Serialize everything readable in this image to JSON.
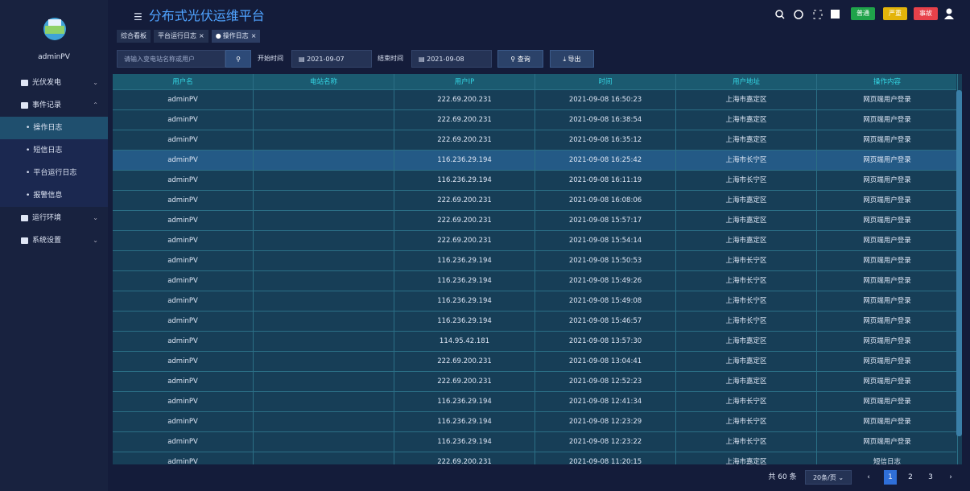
{
  "sidebar": {
    "user": "adminPV",
    "menu": [
      {
        "label": "光伏发电"
      },
      {
        "label": "事件记录",
        "children": [
          "操作日志",
          "短信日志",
          "平台运行日志",
          "报警信息"
        ]
      },
      {
        "label": "运行环境"
      },
      {
        "label": "系统设置"
      }
    ]
  },
  "header": {
    "title": "分布式光伏运维平台",
    "tabs": [
      "综合看板",
      "平台运行日志",
      "操作日志"
    ],
    "levels": [
      "普通",
      "严重",
      "事故"
    ]
  },
  "toolbar": {
    "placeholder": "请输入变电站名称或用户",
    "start_label": "开始时间",
    "start_date": "2021-09-07",
    "end_label": "结束时间",
    "end_date": "2021-09-08",
    "query": "查询",
    "export": "导出"
  },
  "table": {
    "columns": [
      "用户名",
      "电站名称",
      "用户IP",
      "时间",
      "用户地址",
      "操作内容"
    ],
    "rows": [
      {
        "user": "adminPV",
        "ip": "222.69.200.231",
        "time": "2021-09-08 16:50:23",
        "address": "上海市嘉定区",
        "action": "网页端用户登录"
      },
      {
        "user": "adminPV",
        "ip": "222.69.200.231",
        "time": "2021-09-08 16:38:54",
        "address": "上海市嘉定区",
        "action": "网页端用户登录"
      },
      {
        "user": "adminPV",
        "ip": "222.69.200.231",
        "time": "2021-09-08 16:35:12",
        "address": "上海市嘉定区",
        "action": "网页端用户登录"
      },
      {
        "user": "adminPV",
        "ip": "116.236.29.194",
        "time": "2021-09-08 16:25:42",
        "address": "上海市长宁区",
        "action": "网页端用户登录"
      },
      {
        "user": "adminPV",
        "ip": "116.236.29.194",
        "time": "2021-09-08 16:11:19",
        "address": "上海市长宁区",
        "action": "网页端用户登录"
      },
      {
        "user": "adminPV",
        "ip": "222.69.200.231",
        "time": "2021-09-08 16:08:06",
        "address": "上海市嘉定区",
        "action": "网页端用户登录"
      },
      {
        "user": "adminPV",
        "ip": "222.69.200.231",
        "time": "2021-09-08 15:57:17",
        "address": "上海市嘉定区",
        "action": "网页端用户登录"
      },
      {
        "user": "adminPV",
        "ip": "222.69.200.231",
        "time": "2021-09-08 15:54:14",
        "address": "上海市嘉定区",
        "action": "网页端用户登录"
      },
      {
        "user": "adminPV",
        "ip": "116.236.29.194",
        "time": "2021-09-08 15:50:53",
        "address": "上海市长宁区",
        "action": "网页端用户登录"
      },
      {
        "user": "adminPV",
        "ip": "116.236.29.194",
        "time": "2021-09-08 15:49:26",
        "address": "上海市长宁区",
        "action": "网页端用户登录"
      },
      {
        "user": "adminPV",
        "ip": "116.236.29.194",
        "time": "2021-09-08 15:49:08",
        "address": "上海市长宁区",
        "action": "网页端用户登录"
      },
      {
        "user": "adminPV",
        "ip": "116.236.29.194",
        "time": "2021-09-08 15:46:57",
        "address": "上海市长宁区",
        "action": "网页端用户登录"
      },
      {
        "user": "adminPV",
        "ip": "114.95.42.181",
        "time": "2021-09-08 13:57:30",
        "address": "上海市嘉定区",
        "action": "网页端用户登录"
      },
      {
        "user": "adminPV",
        "ip": "222.69.200.231",
        "time": "2021-09-08 13:04:41",
        "address": "上海市嘉定区",
        "action": "网页端用户登录"
      },
      {
        "user": "adminPV",
        "ip": "222.69.200.231",
        "time": "2021-09-08 12:52:23",
        "address": "上海市嘉定区",
        "action": "网页端用户登录"
      },
      {
        "user": "adminPV",
        "ip": "116.236.29.194",
        "time": "2021-09-08 12:41:34",
        "address": "上海市长宁区",
        "action": "网页端用户登录"
      },
      {
        "user": "adminPV",
        "ip": "116.236.29.194",
        "time": "2021-09-08 12:23:29",
        "address": "上海市长宁区",
        "action": "网页端用户登录"
      },
      {
        "user": "adminPV",
        "ip": "116.236.29.194",
        "time": "2021-09-08 12:23:22",
        "address": "上海市长宁区",
        "action": "网页端用户登录"
      },
      {
        "user": "adminPV",
        "ip": "222.69.200.231",
        "time": "2021-09-08 11:20:15",
        "address": "上海市嘉定区",
        "action": "短信日志"
      }
    ]
  },
  "pagination": {
    "total": "共 60 条",
    "page_size": "20条/页",
    "pages": [
      "1",
      "2",
      "3"
    ]
  }
}
